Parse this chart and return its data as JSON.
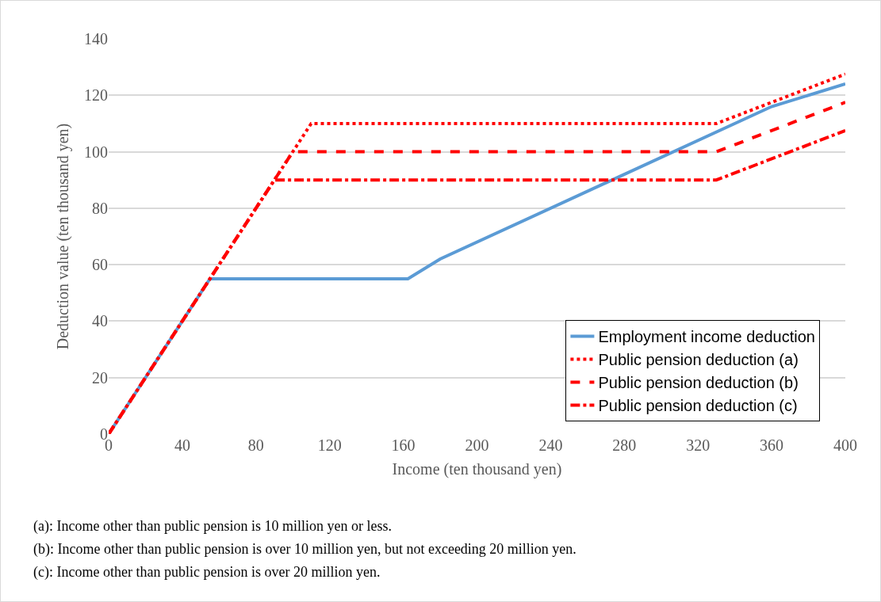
{
  "chart_data": {
    "type": "line",
    "xlabel": "Income (ten thousand yen)",
    "ylabel": "Deduction value (ten thousand yen)",
    "xlim": [
      0,
      400
    ],
    "xticks": [
      0,
      40,
      80,
      120,
      160,
      200,
      240,
      280,
      320,
      360,
      400
    ],
    "ylim": [
      0,
      140
    ],
    "yticks": [
      0,
      20,
      40,
      60,
      80,
      100,
      120,
      140
    ],
    "grid": "y",
    "legend": "bottom right",
    "marker": "none",
    "series": [
      {
        "name": "Employment income deduction",
        "color": "#5b9bd5",
        "line_style": "solid",
        "x": [
          0,
          55,
          162.5,
          180,
          360,
          400
        ],
        "values": [
          0,
          55,
          55,
          62,
          116,
          124
        ]
      },
      {
        "name": "Public pension deduction (a)",
        "color": "#ff0000",
        "line_style": "dotted",
        "x": [
          0,
          110,
          330,
          400
        ],
        "values": [
          0,
          110,
          110,
          127.5
        ]
      },
      {
        "name": "Public pension deduction (b)",
        "color": "#ff0000",
        "line_style": "dashed",
        "x": [
          0,
          100,
          330,
          400
        ],
        "values": [
          0,
          100,
          100,
          117.5
        ]
      },
      {
        "name": "Public pension deduction (c)",
        "color": "#ff0000",
        "line_style": "dashdot",
        "x": [
          0,
          90,
          330,
          400
        ],
        "values": [
          0,
          90,
          90,
          107.5
        ]
      }
    ],
    "annotations": [
      "(a): Income other than public pension is 10 million yen or less.",
      "(b): Income other than public pension is over 10 million yen, but not exceeding 20 million yen.",
      "(c): Income other than public pension is over 20 million yen."
    ]
  }
}
